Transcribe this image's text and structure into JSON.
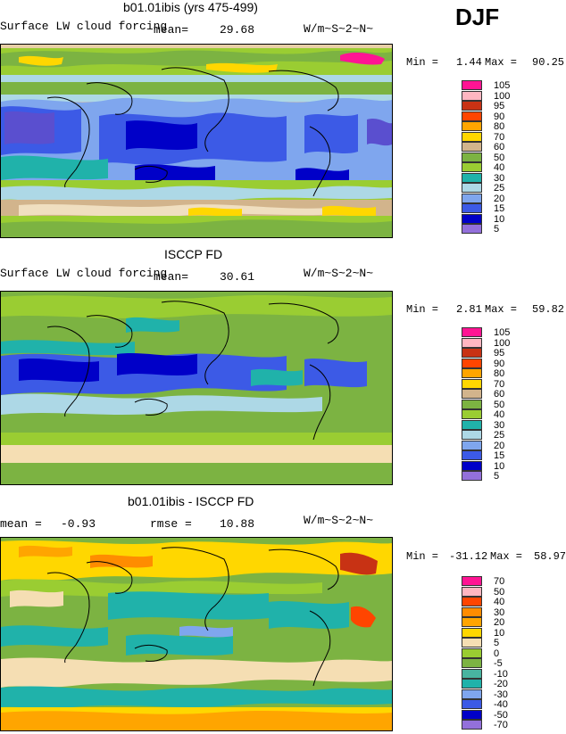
{
  "season": "DJF",
  "panels": [
    {
      "title": "b01.01ibis (yrs 475-499)",
      "variable": "Surface LW cloud forcing",
      "stat1_label": "mean=",
      "stat1_value": "29.68",
      "stat2_label": "",
      "stat2_value": "",
      "units": "W/m~S~2~N~",
      "min_label": "Min =",
      "min_value": "1.44",
      "max_label": "Max =",
      "max_value": "90.25",
      "levels": [
        "105",
        "100",
        "95",
        "90",
        "80",
        "70",
        "60",
        "50",
        "40",
        "30",
        "25",
        "20",
        "15",
        "10",
        "5"
      ]
    },
    {
      "title": "ISCCP FD",
      "variable": "Surface LW cloud forcing",
      "stat1_label": "mean=",
      "stat1_value": "30.61",
      "stat2_label": "",
      "stat2_value": "",
      "units": "W/m~S~2~N~",
      "min_label": "Min =",
      "min_value": "2.81",
      "max_label": "Max =",
      "max_value": "59.82",
      "levels": [
        "105",
        "100",
        "95",
        "90",
        "80",
        "70",
        "60",
        "50",
        "40",
        "30",
        "25",
        "20",
        "15",
        "10",
        "5"
      ]
    },
    {
      "title": "b01.01ibis - ISCCP FD",
      "variable": "",
      "stat1_label": "mean =",
      "stat1_value": "-0.93",
      "stat2_label": "rmse =",
      "stat2_value": "10.88",
      "units": "W/m~S~2~N~",
      "min_label": "Min =",
      "min_value": "-31.12",
      "max_label": "Max =",
      "max_value": "58.97",
      "levels": [
        "70",
        "50",
        "40",
        "30",
        "20",
        "10",
        "5",
        "0",
        "-5",
        "-10",
        "-20",
        "-30",
        "-40",
        "-50",
        "-70"
      ]
    }
  ],
  "chart_data": [
    {
      "type": "heatmap",
      "title": "b01.01ibis (yrs 475-499)",
      "subtitle": "Surface LW cloud forcing",
      "units": "W/m~S~2~N~",
      "mean": 29.68,
      "min": 1.44,
      "max": 90.25,
      "contour_levels": [
        5,
        10,
        15,
        20,
        25,
        30,
        40,
        50,
        60,
        70,
        80,
        90,
        95,
        100,
        105
      ],
      "colorbar": [
        "#9370db",
        "#0000c8",
        "#3c5ae6",
        "#7896f0",
        "#a9e0ee",
        "#1eb4a8",
        "#2ea08c",
        "#a7d958",
        "#6db33f",
        "#e8c9a0",
        "#d2b48c",
        "#ffd700",
        "#ffa500",
        "#ff6a00",
        "#dc2814",
        "#b22222",
        "#ffb6c1",
        "#ff1493"
      ]
    },
    {
      "type": "heatmap",
      "title": "ISCCP FD",
      "subtitle": "Surface LW cloud forcing",
      "units": "W/m~S~2~N~",
      "mean": 30.61,
      "min": 2.81,
      "max": 59.82,
      "contour_levels": [
        5,
        10,
        15,
        20,
        25,
        30,
        40,
        50,
        60,
        70,
        80,
        90,
        95,
        100,
        105
      ]
    },
    {
      "type": "heatmap",
      "title": "b01.01ibis - ISCCP FD",
      "units": "W/m~S~2~N~",
      "mean": -0.93,
      "rmse": 10.88,
      "min": -31.12,
      "max": 58.97,
      "contour_levels": [
        -70,
        -50,
        -40,
        -30,
        -20,
        -10,
        -5,
        0,
        5,
        10,
        20,
        30,
        40,
        50,
        70
      ]
    }
  ],
  "colors": {
    "abs_scale": [
      "#9370db",
      "#0000c8",
      "#3c5ae6",
      "#7fa6ee",
      "#add8e6",
      "#20b2aa",
      "#9acd32",
      "#7cb342",
      "#d2b48c",
      "#ffd700",
      "#ffa500",
      "#ff4500",
      "#c83214",
      "#ffb6c1",
      "#ff1493"
    ],
    "diff_scale": [
      "#9370db",
      "#0000c8",
      "#3c5ae6",
      "#7fa6ee",
      "#20b2aa",
      "#48b4a0",
      "#7cb342",
      "#9acd32",
      "#f5deb3",
      "#ffd700",
      "#ffa500",
      "#ff8c00",
      "#ff4500",
      "#ffb6c1",
      "#ff1493"
    ]
  }
}
